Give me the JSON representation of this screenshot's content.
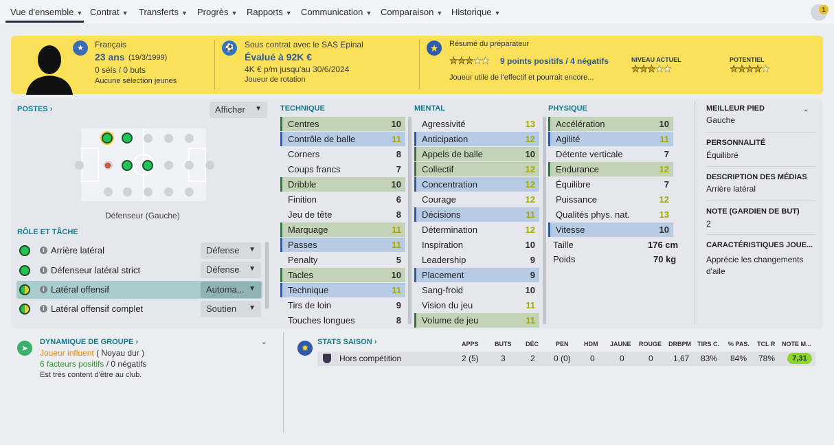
{
  "nav": {
    "items": [
      "Vue d'ensemble",
      "Contrat",
      "Transferts",
      "Progrès",
      "Rapports",
      "Communication",
      "Comparaison",
      "Historique"
    ],
    "notification_count": "1"
  },
  "banner": {
    "nationality": "Français",
    "age": "23 ans",
    "birthdate": "(19/3/1999)",
    "caps_goals": "0 séls / 0 buts",
    "youth_caps": "Aucune sélection jeunes",
    "contract_label": "Sous contrat avec le SAS Epinal",
    "value": "Évalué à 92K €",
    "wage": "4K € p/m jusqu'au 30/6/2024",
    "status": "Joueur de rotation",
    "coach_summary_label": "Résumé du préparateur",
    "points": "9 points positifs / 4 négatifs",
    "coach_note": "Joueur utile de l'effectif et pourrait encore...",
    "current_level_label": "NIVEAU ACTUEL",
    "potential_label": "POTENTIEL",
    "summary_stars": 3,
    "current_stars": 3,
    "potential_stars": 4
  },
  "positions": {
    "title": "POSTES",
    "show_button": "Afficher",
    "position_label": "Défenseur (Gauche)"
  },
  "roles": {
    "title": "RÔLE ET TÂCHE",
    "items": [
      {
        "name": "Arrière latéral",
        "duty": "Défense"
      },
      {
        "name": "Défenseur latéral strict",
        "duty": "Défense"
      },
      {
        "name": "Latéral offensif",
        "duty": "Automa..."
      },
      {
        "name": "Latéral offensif complet",
        "duty": "Soutien"
      }
    ]
  },
  "technique": {
    "title": "TECHNIQUE",
    "attrs": [
      {
        "name": "Centres",
        "value": "10"
      },
      {
        "name": "Contrôle de balle",
        "value": "11"
      },
      {
        "name": "Corners",
        "value": "8"
      },
      {
        "name": "Coups francs",
        "value": "7"
      },
      {
        "name": "Dribble",
        "value": "10"
      },
      {
        "name": "Finition",
        "value": "6"
      },
      {
        "name": "Jeu de tête",
        "value": "8"
      },
      {
        "name": "Marquage",
        "value": "11"
      },
      {
        "name": "Passes",
        "value": "11"
      },
      {
        "name": "Penalty",
        "value": "5"
      },
      {
        "name": "Tacles",
        "value": "10"
      },
      {
        "name": "Technique",
        "value": "11"
      },
      {
        "name": "Tirs de loin",
        "value": "9"
      },
      {
        "name": "Touches longues",
        "value": "8"
      }
    ]
  },
  "mental": {
    "title": "MENTAL",
    "attrs": [
      {
        "name": "Agressivité",
        "value": "13"
      },
      {
        "name": "Anticipation",
        "value": "12"
      },
      {
        "name": "Appels de balle",
        "value": "10"
      },
      {
        "name": "Collectif",
        "value": "12"
      },
      {
        "name": "Concentration",
        "value": "12"
      },
      {
        "name": "Courage",
        "value": "12"
      },
      {
        "name": "Décisions",
        "value": "11"
      },
      {
        "name": "Détermination",
        "value": "12"
      },
      {
        "name": "Inspiration",
        "value": "10"
      },
      {
        "name": "Leadership",
        "value": "9"
      },
      {
        "name": "Placement",
        "value": "9"
      },
      {
        "name": "Sang-froid",
        "value": "10"
      },
      {
        "name": "Vision du jeu",
        "value": "11"
      },
      {
        "name": "Volume de jeu",
        "value": "11"
      }
    ]
  },
  "physique": {
    "title": "PHYSIQUE",
    "attrs": [
      {
        "name": "Accélération",
        "value": "10"
      },
      {
        "name": "Agilité",
        "value": "11"
      },
      {
        "name": "Détente verticale",
        "value": "7"
      },
      {
        "name": "Endurance",
        "value": "12"
      },
      {
        "name": "Équilibre",
        "value": "7"
      },
      {
        "name": "Puissance",
        "value": "12"
      },
      {
        "name": "Qualités phys. nat.",
        "value": "13"
      },
      {
        "name": "Vitesse",
        "value": "10"
      }
    ],
    "height_label": "Taille",
    "height": "176 cm",
    "weight_label": "Poids",
    "weight": "70 kg"
  },
  "side": {
    "best_foot_title": "MEILLEUR PIED",
    "best_foot": "Gauche",
    "personality_title": "PERSONNALITÉ",
    "personality": "Équilibré",
    "media_title": "DESCRIPTION DES MÉDIAS",
    "media": "Arrière latéral",
    "gk_title": "NOTE (GARDIEN DE BUT)",
    "gk": "2",
    "traits_title": "CARACTÉRISTIQUES JOUE...",
    "traits_line1": "Apprécie les changements",
    "traits_line2": "d'aile"
  },
  "group": {
    "title": "DYNAMIQUE DE GROUPE",
    "influence": "Joueur influent",
    "core": "( Noyau dur )",
    "factors": "6 facteurs positifs",
    "neg": "/ 0 négatifs",
    "content": "Est très content d'être au club."
  },
  "stats": {
    "title": "STATS SAISON",
    "headers": [
      "APPS",
      "BUTS",
      "DÉC",
      "PEN",
      "HDM",
      "JAUNE",
      "ROUGE",
      "DRBPM",
      "TIRS C.",
      "% PAS.",
      "TCL R",
      "NOTE M..."
    ],
    "competition": "Hors compétition",
    "values": [
      "2 (5)",
      "3",
      "2",
      "0 (0)",
      "0",
      "0",
      "0",
      "1,67",
      "83%",
      "84%",
      "78%",
      "7,31"
    ]
  },
  "colors": {
    "accent": "#fbe15a",
    "teal": "#0f7a8c",
    "green": "#25c254"
  }
}
